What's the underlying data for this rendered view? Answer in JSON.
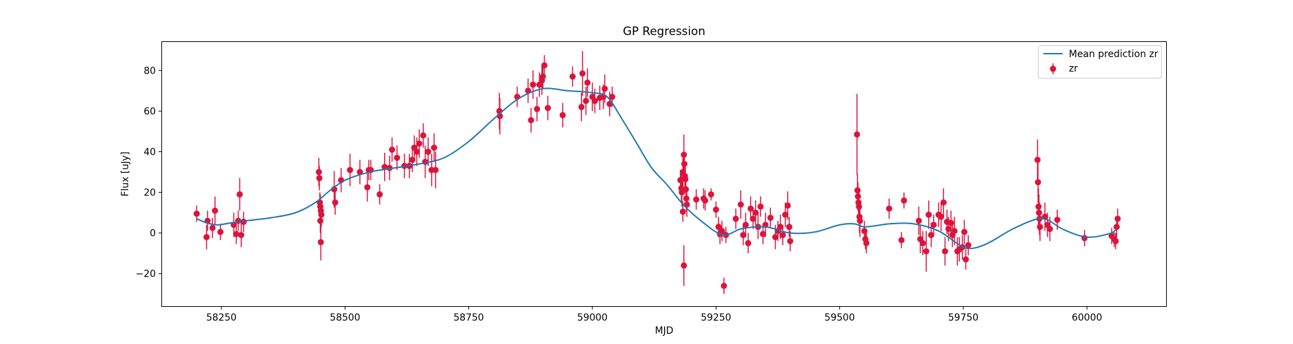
{
  "chart_data": {
    "type": "scatter",
    "title": "GP Regression",
    "xlabel": "MJD",
    "ylabel": "Flux [uJy]",
    "xlim": [
      58130,
      60160
    ],
    "ylim": [
      -36,
      94
    ],
    "xticks": [
      58250,
      58500,
      58750,
      59000,
      59250,
      59500,
      59750,
      60000
    ],
    "yticks": [
      -20,
      0,
      20,
      40,
      60,
      80
    ],
    "grid": false,
    "legend_position": "top-right",
    "colors": {
      "mean": "#1f77b4",
      "points": "#dc143c"
    },
    "series": [
      {
        "name": "Mean prediction zr",
        "kind": "line",
        "x": [
          58200,
          58220,
          58240,
          58270,
          58300,
          58350,
          58400,
          58440,
          58470,
          58500,
          58550,
          58600,
          58650,
          58700,
          58750,
          58800,
          58850,
          58900,
          58950,
          59000,
          59030,
          59060,
          59090,
          59120,
          59150,
          59180,
          59200,
          59230,
          59250,
          59270,
          59300,
          59350,
          59400,
          59450,
          59500,
          59530,
          59550,
          59600,
          59650,
          59700,
          59750,
          59770,
          59800,
          59850,
          59900,
          59920,
          59950,
          60000,
          60050,
          60060
        ],
        "y": [
          7,
          5,
          4,
          5,
          6,
          7.5,
          10,
          15,
          21,
          26,
          30,
          32,
          34,
          37,
          45,
          56,
          66,
          71,
          70,
          69,
          67,
          56,
          44,
          32,
          24,
          15,
          10,
          4,
          0.5,
          -1,
          2,
          3,
          0,
          0.5,
          4,
          4.5,
          3,
          4.5,
          4.5,
          1,
          -7,
          -7.5,
          -5,
          2,
          7,
          6.5,
          2,
          -2,
          0,
          2
        ]
      },
      {
        "name": "zr",
        "kind": "errorbar",
        "points": [
          {
            "x": 58200,
            "y": 9.5,
            "e": 4
          },
          {
            "x": 58220,
            "y": -2,
            "e": 6
          },
          {
            "x": 58222,
            "y": 6,
            "e": 5
          },
          {
            "x": 58232,
            "y": 2.5,
            "e": 5
          },
          {
            "x": 58237,
            "y": 11,
            "e": 7
          },
          {
            "x": 58248,
            "y": 0.5,
            "e": 4
          },
          {
            "x": 58275,
            "y": 4,
            "e": 6
          },
          {
            "x": 58280,
            "y": -0.5,
            "e": 5
          },
          {
            "x": 58284,
            "y": 6,
            "e": 5
          },
          {
            "x": 58287,
            "y": 19,
            "e": 8
          },
          {
            "x": 58290,
            "y": -1,
            "e": 6
          },
          {
            "x": 58295,
            "y": 5.5,
            "e": 5
          },
          {
            "x": 58447,
            "y": 30,
            "e": 7
          },
          {
            "x": 58448,
            "y": 27,
            "e": 6
          },
          {
            "x": 58449,
            "y": 15,
            "e": 5
          },
          {
            "x": 58450,
            "y": 13,
            "e": 6
          },
          {
            "x": 58451,
            "y": 11,
            "e": 5
          },
          {
            "x": 58452,
            "y": 9,
            "e": 6
          },
          {
            "x": 58450,
            "y": 6,
            "e": 6
          },
          {
            "x": 58451,
            "y": -4.5,
            "e": 9
          },
          {
            "x": 58478,
            "y": 21.5,
            "e": 9
          },
          {
            "x": 58480,
            "y": 15,
            "e": 6
          },
          {
            "x": 58492,
            "y": 26,
            "e": 6
          },
          {
            "x": 58510,
            "y": 31,
            "e": 8
          },
          {
            "x": 58530,
            "y": 30,
            "e": 6
          },
          {
            "x": 58545,
            "y": 22.5,
            "e": 7
          },
          {
            "x": 58548,
            "y": 31,
            "e": 5
          },
          {
            "x": 58552,
            "y": 31,
            "e": 5
          },
          {
            "x": 58570,
            "y": 19,
            "e": 5
          },
          {
            "x": 58580,
            "y": 32.5,
            "e": 7
          },
          {
            "x": 58590,
            "y": 32,
            "e": 6
          },
          {
            "x": 58595,
            "y": 41,
            "e": 6
          },
          {
            "x": 58605,
            "y": 37,
            "e": 6
          },
          {
            "x": 58620,
            "y": 33,
            "e": 6
          },
          {
            "x": 58630,
            "y": 33,
            "e": 6
          },
          {
            "x": 58636,
            "y": 36,
            "e": 6
          },
          {
            "x": 58640,
            "y": 42,
            "e": 6
          },
          {
            "x": 58645,
            "y": 40,
            "e": 7
          },
          {
            "x": 58650,
            "y": 44,
            "e": 7
          },
          {
            "x": 58658,
            "y": 48,
            "e": 6
          },
          {
            "x": 58662,
            "y": 35,
            "e": 8
          },
          {
            "x": 58668,
            "y": 40,
            "e": 7
          },
          {
            "x": 58675,
            "y": 31,
            "e": 8
          },
          {
            "x": 58680,
            "y": 42,
            "e": 7
          },
          {
            "x": 58683,
            "y": 31,
            "e": 9
          },
          {
            "x": 58812,
            "y": 60,
            "e": 9
          },
          {
            "x": 58813,
            "y": 57.5,
            "e": 9
          },
          {
            "x": 58848,
            "y": 67,
            "e": 5
          },
          {
            "x": 58870,
            "y": 70,
            "e": 6
          },
          {
            "x": 58876,
            "y": 55.5,
            "e": 6
          },
          {
            "x": 58880,
            "y": 73,
            "e": 7
          },
          {
            "x": 58888,
            "y": 61,
            "e": 6
          },
          {
            "x": 58893,
            "y": 73,
            "e": 6
          },
          {
            "x": 58898,
            "y": 75,
            "e": 7
          },
          {
            "x": 58900,
            "y": 77,
            "e": 6
          },
          {
            "x": 58903,
            "y": 82.5,
            "e": 5
          },
          {
            "x": 58910,
            "y": 61.5,
            "e": 6
          },
          {
            "x": 58940,
            "y": 58,
            "e": 6
          },
          {
            "x": 58960,
            "y": 77,
            "e": 5
          },
          {
            "x": 58978,
            "y": 62,
            "e": 7
          },
          {
            "x": 58980,
            "y": 78.5,
            "e": 11
          },
          {
            "x": 58987,
            "y": 65,
            "e": 7
          },
          {
            "x": 58990,
            "y": 74,
            "e": 7
          },
          {
            "x": 59000,
            "y": 67,
            "e": 7
          },
          {
            "x": 59005,
            "y": 65,
            "e": 6
          },
          {
            "x": 59015,
            "y": 66.5,
            "e": 6
          },
          {
            "x": 59022,
            "y": 67,
            "e": 6
          },
          {
            "x": 59025,
            "y": 71,
            "e": 7
          },
          {
            "x": 59035,
            "y": 63.5,
            "e": 6
          },
          {
            "x": 59040,
            "y": 67,
            "e": 5
          },
          {
            "x": 59178,
            "y": 26,
            "e": 5
          },
          {
            "x": 59180,
            "y": 22,
            "e": 7
          },
          {
            "x": 59181,
            "y": 20,
            "e": 7
          },
          {
            "x": 59183,
            "y": 30,
            "e": 7
          },
          {
            "x": 59185,
            "y": 38.5,
            "e": 10
          },
          {
            "x": 59186,
            "y": 34,
            "e": 6
          },
          {
            "x": 59187,
            "y": 28,
            "e": 5
          },
          {
            "x": 59188,
            "y": 26.5,
            "e": 6
          },
          {
            "x": 59189,
            "y": 21.5,
            "e": 6
          },
          {
            "x": 59190,
            "y": 17,
            "e": 6
          },
          {
            "x": 59191,
            "y": 14,
            "e": 6
          },
          {
            "x": 59183,
            "y": 10.5,
            "e": 5
          },
          {
            "x": 59185,
            "y": -16,
            "e": 10
          },
          {
            "x": 59210,
            "y": 16.5,
            "e": 5
          },
          {
            "x": 59225,
            "y": 17,
            "e": 5
          },
          {
            "x": 59228,
            "y": 16,
            "e": 5
          },
          {
            "x": 59240,
            "y": 19,
            "e": 3
          },
          {
            "x": 59250,
            "y": 11.5,
            "e": 4
          },
          {
            "x": 59255,
            "y": 3,
            "e": 5
          },
          {
            "x": 59258,
            "y": -0.5,
            "e": 5
          },
          {
            "x": 59262,
            "y": 1,
            "e": 5
          },
          {
            "x": 59266,
            "y": -26,
            "e": 4
          },
          {
            "x": 59270,
            "y": -1,
            "e": 4
          },
          {
            "x": 59290,
            "y": 7,
            "e": 5
          },
          {
            "x": 59300,
            "y": 14,
            "e": 7
          },
          {
            "x": 59305,
            "y": -1,
            "e": 5
          },
          {
            "x": 59310,
            "y": 4,
            "e": 6
          },
          {
            "x": 59315,
            "y": -5,
            "e": 5
          },
          {
            "x": 59320,
            "y": 12,
            "e": 6
          },
          {
            "x": 59325,
            "y": 7,
            "e": 5
          },
          {
            "x": 59330,
            "y": 10,
            "e": 6
          },
          {
            "x": 59335,
            "y": 3,
            "e": 6
          },
          {
            "x": 59340,
            "y": 13,
            "e": 5
          },
          {
            "x": 59345,
            "y": -0.5,
            "e": 5
          },
          {
            "x": 59350,
            "y": 4,
            "e": 6
          },
          {
            "x": 59360,
            "y": 7.5,
            "e": 5
          },
          {
            "x": 59370,
            "y": -2,
            "e": 6
          },
          {
            "x": 59375,
            "y": 1,
            "e": 5
          },
          {
            "x": 59380,
            "y": 3,
            "e": 6
          },
          {
            "x": 59385,
            "y": -1,
            "e": 5
          },
          {
            "x": 59390,
            "y": 9,
            "e": 6
          },
          {
            "x": 59395,
            "y": 13.5,
            "e": 7
          },
          {
            "x": 59398,
            "y": 3,
            "e": 5
          },
          {
            "x": 59400,
            "y": -4,
            "e": 5
          },
          {
            "x": 59535,
            "y": 48.5,
            "e": 20
          },
          {
            "x": 59536,
            "y": 21,
            "e": 8
          },
          {
            "x": 59537,
            "y": 18,
            "e": 7
          },
          {
            "x": 59538,
            "y": 15,
            "e": 7
          },
          {
            "x": 59539,
            "y": 13,
            "e": 7
          },
          {
            "x": 59540,
            "y": 8,
            "e": 8
          },
          {
            "x": 59541,
            "y": 6,
            "e": 8
          },
          {
            "x": 59550,
            "y": 1,
            "e": 5
          },
          {
            "x": 59552,
            "y": -3,
            "e": 5
          },
          {
            "x": 59554,
            "y": -5,
            "e": 5
          },
          {
            "x": 59600,
            "y": 12,
            "e": 5
          },
          {
            "x": 59625,
            "y": -3.5,
            "e": 4
          },
          {
            "x": 59630,
            "y": 16,
            "e": 4
          },
          {
            "x": 59660,
            "y": 6,
            "e": 7
          },
          {
            "x": 59663,
            "y": -3,
            "e": 7
          },
          {
            "x": 59668,
            "y": -5,
            "e": 6
          },
          {
            "x": 59675,
            "y": -9,
            "e": 10
          },
          {
            "x": 59680,
            "y": 9,
            "e": 7
          },
          {
            "x": 59685,
            "y": -1,
            "e": 6
          },
          {
            "x": 59690,
            "y": 4,
            "e": 5
          },
          {
            "x": 59700,
            "y": 9,
            "e": 6
          },
          {
            "x": 59705,
            "y": 8,
            "e": 7
          },
          {
            "x": 59710,
            "y": 15,
            "e": 7
          },
          {
            "x": 59713,
            "y": -9,
            "e": 7
          },
          {
            "x": 59717,
            "y": 5.5,
            "e": 6
          },
          {
            "x": 59720,
            "y": 2,
            "e": 6
          },
          {
            "x": 59725,
            "y": 5,
            "e": 6
          },
          {
            "x": 59728,
            "y": -1,
            "e": 6
          },
          {
            "x": 59732,
            "y": 1,
            "e": 7
          },
          {
            "x": 59738,
            "y": -9,
            "e": 7
          },
          {
            "x": 59742,
            "y": -8,
            "e": 6
          },
          {
            "x": 59748,
            "y": -7,
            "e": 6
          },
          {
            "x": 59752,
            "y": 0.5,
            "e": 6
          },
          {
            "x": 59755,
            "y": -13,
            "e": 5
          },
          {
            "x": 59760,
            "y": -6,
            "e": 5
          },
          {
            "x": 59900,
            "y": 36,
            "e": 10
          },
          {
            "x": 59901,
            "y": 25,
            "e": 10
          },
          {
            "x": 59902,
            "y": 13,
            "e": 9
          },
          {
            "x": 59903,
            "y": 10,
            "e": 9
          },
          {
            "x": 59904,
            "y": 7,
            "e": 8
          },
          {
            "x": 59905,
            "y": 3,
            "e": 7
          },
          {
            "x": 59915,
            "y": 8,
            "e": 7
          },
          {
            "x": 59920,
            "y": 4,
            "e": 6
          },
          {
            "x": 59925,
            "y": 2,
            "e": 6
          },
          {
            "x": 59940,
            "y": 6.5,
            "e": 5
          },
          {
            "x": 59995,
            "y": -2.5,
            "e": 4
          },
          {
            "x": 60050,
            "y": -1.5,
            "e": 4
          },
          {
            "x": 60055,
            "y": -3,
            "e": 4
          },
          {
            "x": 60058,
            "y": -4,
            "e": 4
          },
          {
            "x": 60060,
            "y": 3,
            "e": 5
          },
          {
            "x": 60062,
            "y": 7,
            "e": 5
          }
        ]
      }
    ]
  }
}
